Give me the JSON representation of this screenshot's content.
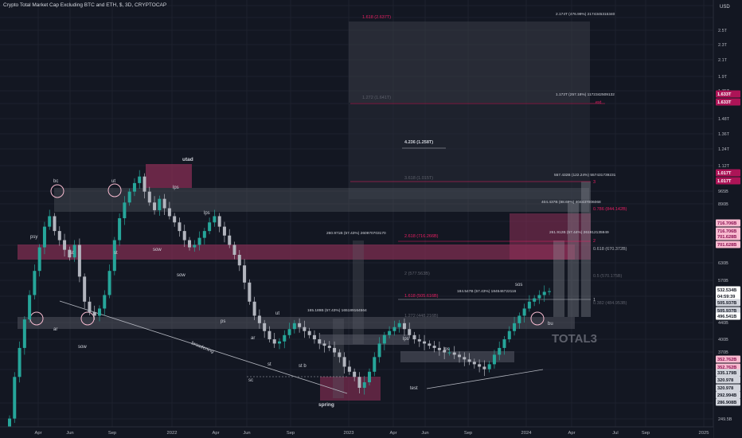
{
  "header": {
    "title": "Crypto Total Market Cap Excluding BTC and ETH, $, 3D, CRYPTOCAP"
  },
  "colors": {
    "background": "#131722",
    "candle_up": "#26a69a",
    "candle_down": "#b2b5be",
    "pink_zone": "#8e2f57",
    "gray_zone": "#5d606b",
    "fib_pink": "#e91e63",
    "text": "#d1d4dc",
    "badge_magenta": "#ad1457",
    "badge_white": "#e6e6e6",
    "badge_pink_light": "#f8bbd0"
  },
  "chart_data": {
    "type": "candlestick",
    "currency": "USD",
    "x_ticks": [
      "Apr",
      "Jun",
      "Sep",
      "2022",
      "Apr",
      "Jun",
      "Sep",
      "2023",
      "Apr",
      "Jun",
      "Sep",
      "2024",
      "Apr",
      "Jul",
      "Sep",
      "2025"
    ],
    "y_ticks": [
      "3T",
      "2.7T",
      "2.5T",
      "2.3T",
      "2.1T",
      "1.9T",
      "1.75T",
      "1.6T",
      "1.48T",
      "1.36T",
      "1.24T",
      "1.12T",
      "965B",
      "890B",
      "818B",
      "710B",
      "630B",
      "570B",
      "515B",
      "440B",
      "400B",
      "370B",
      "315B",
      "280B",
      "249.5B"
    ],
    "price_badges": [
      {
        "text": "1.633T",
        "style": "magenta"
      },
      {
        "text": "1.633T",
        "style": "magenta"
      },
      {
        "text": "1.017T",
        "style": "magenta"
      },
      {
        "text": "1.017T",
        "style": "magenta"
      },
      {
        "text": "716.706B",
        "style": "pinklight"
      },
      {
        "text": "716.706B",
        "style": "pinklight"
      },
      {
        "text": "701.628B",
        "style": "pinklight"
      },
      {
        "text": "701.628B",
        "style": "pinklight"
      },
      {
        "text": "532.534B",
        "style": "white"
      },
      {
        "text": "04:59:39",
        "style": "white"
      },
      {
        "text": "505.937B",
        "style": "gray"
      },
      {
        "text": "505.937B",
        "style": "gray"
      },
      {
        "text": "496.541B",
        "style": "white"
      },
      {
        "text": "352.762B",
        "style": "pinklight"
      },
      {
        "text": "352.762B",
        "style": "pinklight"
      },
      {
        "text": "335.179B",
        "style": "gray"
      },
      {
        "text": "320.978",
        "style": "gray"
      },
      {
        "text": "320.978",
        "style": "gray"
      },
      {
        "text": "292.994B",
        "style": "gray"
      },
      {
        "text": "286.908B",
        "style": "gray"
      }
    ],
    "wyckoff_labels": [
      "psy",
      "bc",
      "st",
      "ar",
      "sow",
      "ut",
      "st",
      "utad",
      "lps",
      "sow",
      "lps",
      "sow",
      "ps",
      "ar",
      "st",
      "ut",
      "broadening",
      "sc",
      "st b",
      "spring",
      "lps",
      "test",
      "lps",
      "sos",
      "bu"
    ],
    "fib_levels": [
      {
        "text": "1.618 (2.637T)"
      },
      {
        "text": "1.272 (1.641T)"
      },
      {
        "text": "4.236 (1.258T)"
      },
      {
        "text": "3.618 (1.015T)"
      },
      {
        "text": "3"
      },
      {
        "text": "0.786 (844.142B)"
      },
      {
        "text": "2.618 (716.266B)"
      },
      {
        "text": "2"
      },
      {
        "text": "0.618 (670.372B)"
      },
      {
        "text": "2 (577.563B)"
      },
      {
        "text": "0.5 (570.175B)"
      },
      {
        "text": "1.618 (505.616B)"
      },
      {
        "text": "1"
      },
      {
        "text": "0.382 (484.953B)"
      },
      {
        "text": "1.272 (448.216B)"
      },
      {
        "text": "ext"
      }
    ],
    "measure_labels": [
      {
        "text": "2.174T (476.99%) 2174345315340"
      },
      {
        "text": "1.172T (257.18%) 1172342509132"
      },
      {
        "text": "557.432B (122.24%) 557431739231"
      },
      {
        "text": "404.437B (88.69%) 404437006068"
      },
      {
        "text": "261.912B (57.44%) 261912135949"
      },
      {
        "text": "260.971B (57.43%) 260970703170"
      },
      {
        "text": "184.547B (57.43%) 184546722116"
      },
      {
        "text": "165.189B (57.43%) 165189164564"
      }
    ],
    "watermark": "TOTAL3",
    "series": [
      {
        "values": [
          250,
          320,
          380,
          450,
          520,
          600,
          690,
          780,
          830,
          760,
          720,
          680,
          650,
          700,
          580,
          500,
          470,
          460,
          480,
          520,
          600,
          720,
          820,
          900,
          960,
          1010,
          1050,
          960,
          900,
          860,
          920,
          870,
          830,
          800,
          760,
          720,
          690,
          700,
          730,
          760,
          800,
          830,
          780,
          740,
          700,
          660,
          620,
          560,
          500,
          460,
          440,
          420,
          400,
          390,
          395,
          410,
          425,
          440,
          430,
          420,
          410,
          400,
          390,
          385,
          380,
          370,
          360,
          340,
          330,
          320,
          300,
          310,
          330,
          360,
          390,
          410,
          420,
          430,
          440,
          425,
          410,
          400,
          395,
          390,
          385,
          380,
          375,
          370,
          370,
          365,
          360,
          355,
          350,
          345,
          340,
          335,
          345,
          365,
          380,
          400,
          420,
          440,
          460,
          480,
          500,
          510,
          520,
          530,
          532
        ]
      }
    ]
  }
}
